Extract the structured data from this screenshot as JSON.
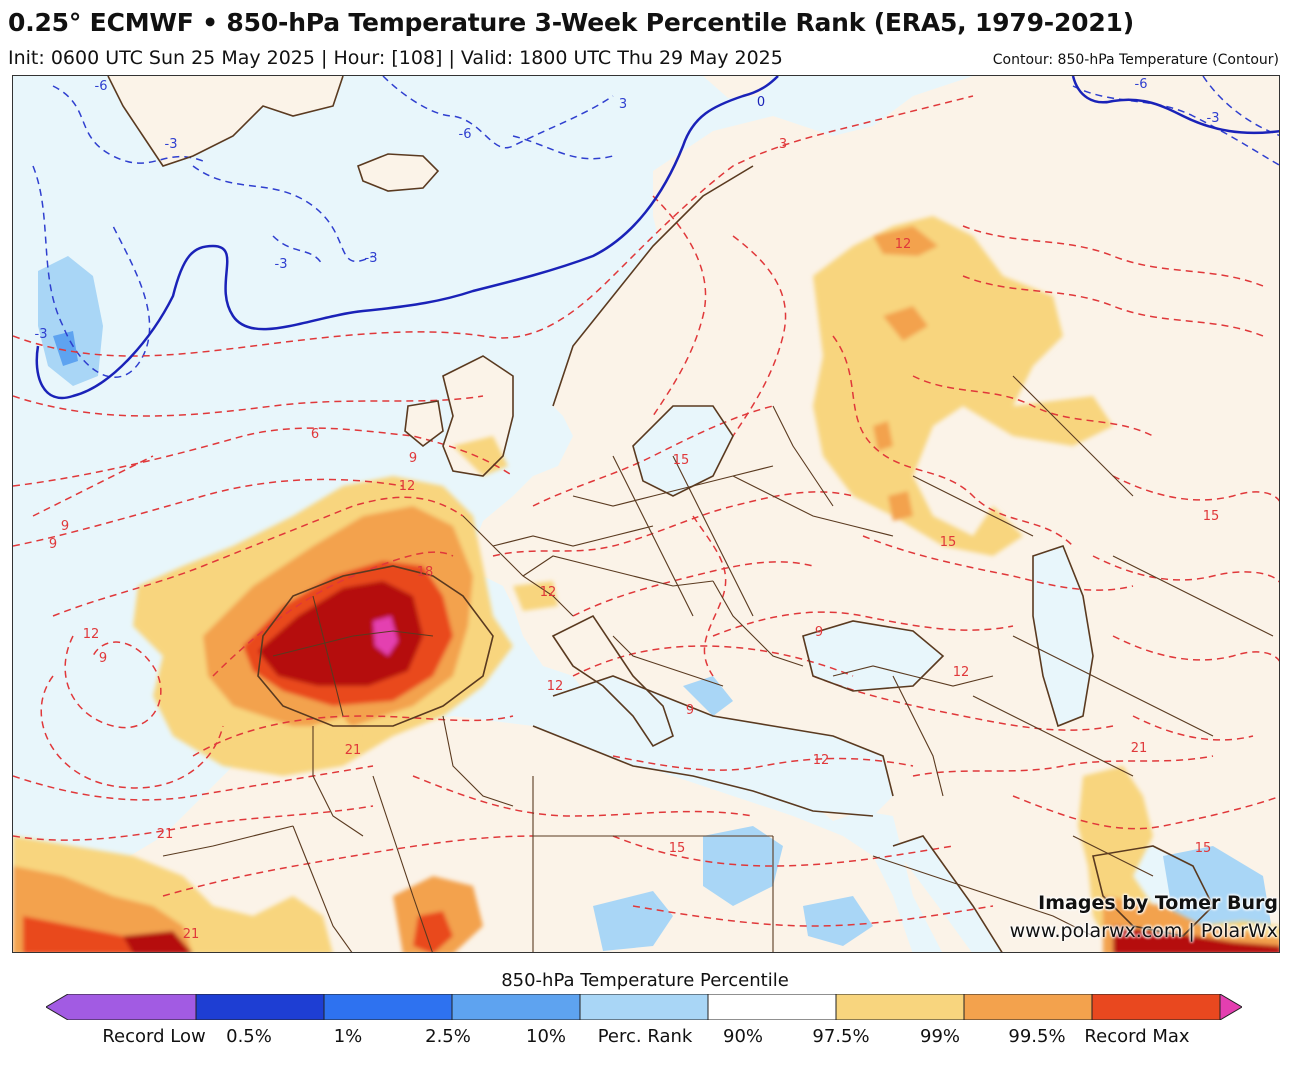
{
  "header": {
    "title": "0.25° ECMWF • 850-hPa Temperature 3-Week Percentile Rank (ERA5, 1979-2021)",
    "subtitle": "Init: 0600 UTC Sun 25 May 2025 | Hour: [108] | Valid: 1800 UTC Thu 29 May 2025",
    "contour_note": "Contour: 850-hPa Temperature (Contour)"
  },
  "credits": {
    "line1": "Images by Tomer Burg",
    "line2": "www.polarwx.com | PolarWx"
  },
  "legend": {
    "title": "850-hPa Temperature Percentile",
    "colors": [
      "#a25be3",
      "#1e3ed3",
      "#2e72f0",
      "#5ea3f0",
      "#a9d6f6",
      "#ffffff",
      "#f8d57e",
      "#f3a24d",
      "#e9481f",
      "#b50d0d",
      "#e43fb0"
    ],
    "labels": [
      "Record Low",
      "0.5%",
      "1%",
      "2.5%",
      "10%",
      "Perc. Rank",
      "90%",
      "97.5%",
      "99%",
      "99.5%",
      "Record Max"
    ]
  },
  "map": {
    "colors": {
      "ocean": "#e8f6fb",
      "land": "#fbf3e8",
      "warm_90": "#f8d57e",
      "warm_97": "#f3a24d",
      "warm_99": "#e9481f",
      "warm_995": "#b50d0d",
      "record_max": "#e43fb0",
      "cool_10": "#a9d6f6",
      "cool_25": "#5ea3f0",
      "contour_warm": "#e0383a",
      "contour_cold": "#2f3fcf",
      "zero_line": "#1a22b8",
      "borders": "#5a3a20"
    },
    "contour_labels": [
      "-6",
      "-3",
      "-6",
      "-3",
      "-3",
      "-3",
      "0",
      "3",
      "-6",
      "-3",
      "3",
      "6",
      "9",
      "9",
      "9",
      "12",
      "18",
      "12",
      "9",
      "12",
      "15",
      "21",
      "21",
      "15",
      "12",
      "9",
      "9",
      "12",
      "15",
      "15",
      "12",
      "12",
      "15",
      "21",
      "21"
    ]
  }
}
